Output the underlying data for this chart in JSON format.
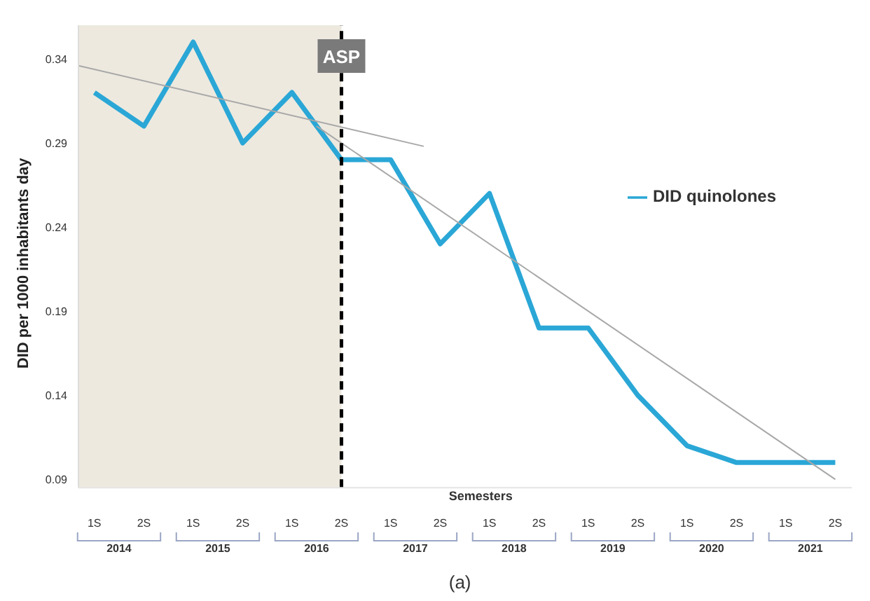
{
  "chart_data": {
    "type": "line",
    "ylabel": "DID per 1000 inhabitants  day",
    "x": [
      "2014-04-01",
      "2014-10-01",
      "2015-04-01",
      "2015-10-01",
      "2016-04-01",
      "2016-10-01",
      "2017-04-01",
      "2017-10-01",
      "2018-04-01",
      "2018-10-01",
      "2019-04-01",
      "2019-10-01",
      "2020-04-01",
      "2020-10-01",
      "2021-04-01",
      "2021-10-01"
    ],
    "series": [
      {
        "name": "DID quinolones",
        "color": "#2aa7d6",
        "values": [
          0.32,
          0.3,
          0.35,
          0.29,
          0.32,
          0.28,
          0.28,
          0.23,
          0.26,
          0.18,
          0.18,
          0.14,
          0.11,
          0.1,
          0.1,
          0.1
        ]
      },
      {
        "type": "line",
        "color": "#a8a8a8",
        "x": [
          "2014-02-01",
          "2017-08-01"
        ],
        "values": [
          0.336,
          0.288
        ]
      },
      {
        "type": "line",
        "color": "#a8a8a8",
        "x": [
          "2016-07-01",
          "2021-10-01"
        ],
        "values": [
          0.3,
          0.09
        ]
      }
    ],
    "xlim": [
      "2014-02-01",
      "2021-12-01"
    ],
    "xticks": [
      {
        "value": "2014-07-01",
        "label": "2014"
      },
      {
        "value": "2015-07-01",
        "label": "2015"
      },
      {
        "value": "2016-07-01",
        "label": "2016"
      },
      {
        "value": "2017-07-01",
        "label": "2017"
      },
      {
        "value": "2018-07-01",
        "label": "2018"
      },
      {
        "value": "2019-07-01",
        "label": "2019"
      },
      {
        "value": "2020-07-01",
        "label": "2020"
      },
      {
        "value": "2021-07-01",
        "label": "2021"
      }
    ],
    "ylim": [
      0.085,
      0.36
    ],
    "yticks": [
      0.09,
      0.14,
      0.19,
      0.24,
      0.29,
      0.34
    ],
    "ref_lines": [
      {
        "axis": "x",
        "value": "2016-10-01",
        "label": "ASP",
        "color": "#000000",
        "line_style": "dashed"
      }
    ],
    "bands": [
      {
        "axis": "x",
        "from": "2014-02-01",
        "to": "2016-10-01",
        "color": "#ede9df"
      }
    ],
    "annotations": [
      "Semesters",
      "(a)",
      "1S",
      "2S",
      "1S",
      "2S",
      "1S",
      "2S",
      "1S",
      "2S",
      "1S",
      "2S",
      "1S",
      "2S",
      "1S",
      "2S",
      "1S",
      "2S"
    ],
    "legend": "right",
    "grid": false,
    "marker": "none",
    "line_style": "solid"
  }
}
